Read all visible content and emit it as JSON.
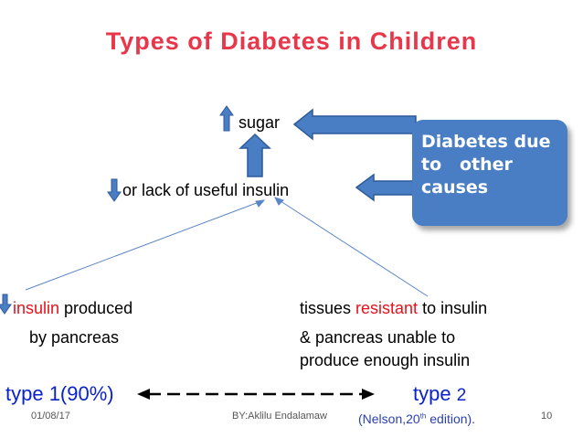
{
  "title": "Types of Diabetes in Children",
  "top": {
    "sugar": "sugar",
    "insulin_line": "or lack of useful insulin"
  },
  "callout": {
    "text": "Diabetes due\nto   other\ncauses"
  },
  "left_cause": {
    "word": "insulin",
    "rest": " produced",
    "line2": "by pancreas"
  },
  "right_cause": {
    "pre": "tissues ",
    "word": "resistant",
    "post": " to insulin",
    "line2": "& pancreas unable to",
    "line3": "produce enough insulin"
  },
  "types": {
    "type1": "type 1(90%)",
    "type2_word": "type ",
    "type2_num": "2"
  },
  "footer": {
    "date": "01/08/17",
    "author": "BY:Aklilu Endalamaw",
    "citation_pre": "(Nelson,20",
    "citation_sup": "th",
    "citation_post": " edition).",
    "page": "10"
  },
  "colors": {
    "title": "#e8374a",
    "accent_red": "#e8101a",
    "type_blue": "#0a22c8",
    "arrow_blue": "#4a7ec4",
    "callout_fill": "#4a7ec4"
  },
  "icons": [
    "up-arrow-icon",
    "down-arrow-icon",
    "left-arrow-icon",
    "double-dashed-arrow-icon"
  ]
}
